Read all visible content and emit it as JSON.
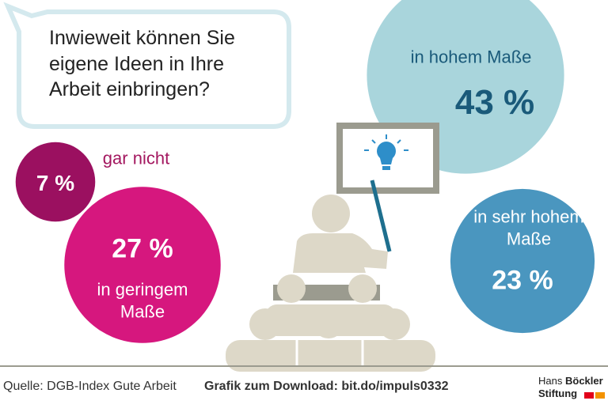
{
  "chart_data": {
    "type": "bubble",
    "title": "Inwieweit können Sie eigene Ideen in Ihre Arbeit einbringen?",
    "categories": [
      "gar nicht",
      "in geringem Maße",
      "in hohem Maße",
      "in sehr hohem Maße"
    ],
    "values": [
      7,
      27,
      43,
      23
    ],
    "value_labels": [
      "7 %",
      "27 %",
      "43 %",
      "23 %"
    ],
    "colors": [
      "#9b1060",
      "#d6177e",
      "#a9d5dc",
      "#4a96bf"
    ]
  },
  "footer": {
    "source": "Quelle: DGB-Index Gute Arbeit",
    "download": "Grafik zum Download: bit.do/impuls0332",
    "logo_line1_a": "Hans",
    "logo_line1_b": "Böckler",
    "logo_line2": "Stiftung"
  }
}
